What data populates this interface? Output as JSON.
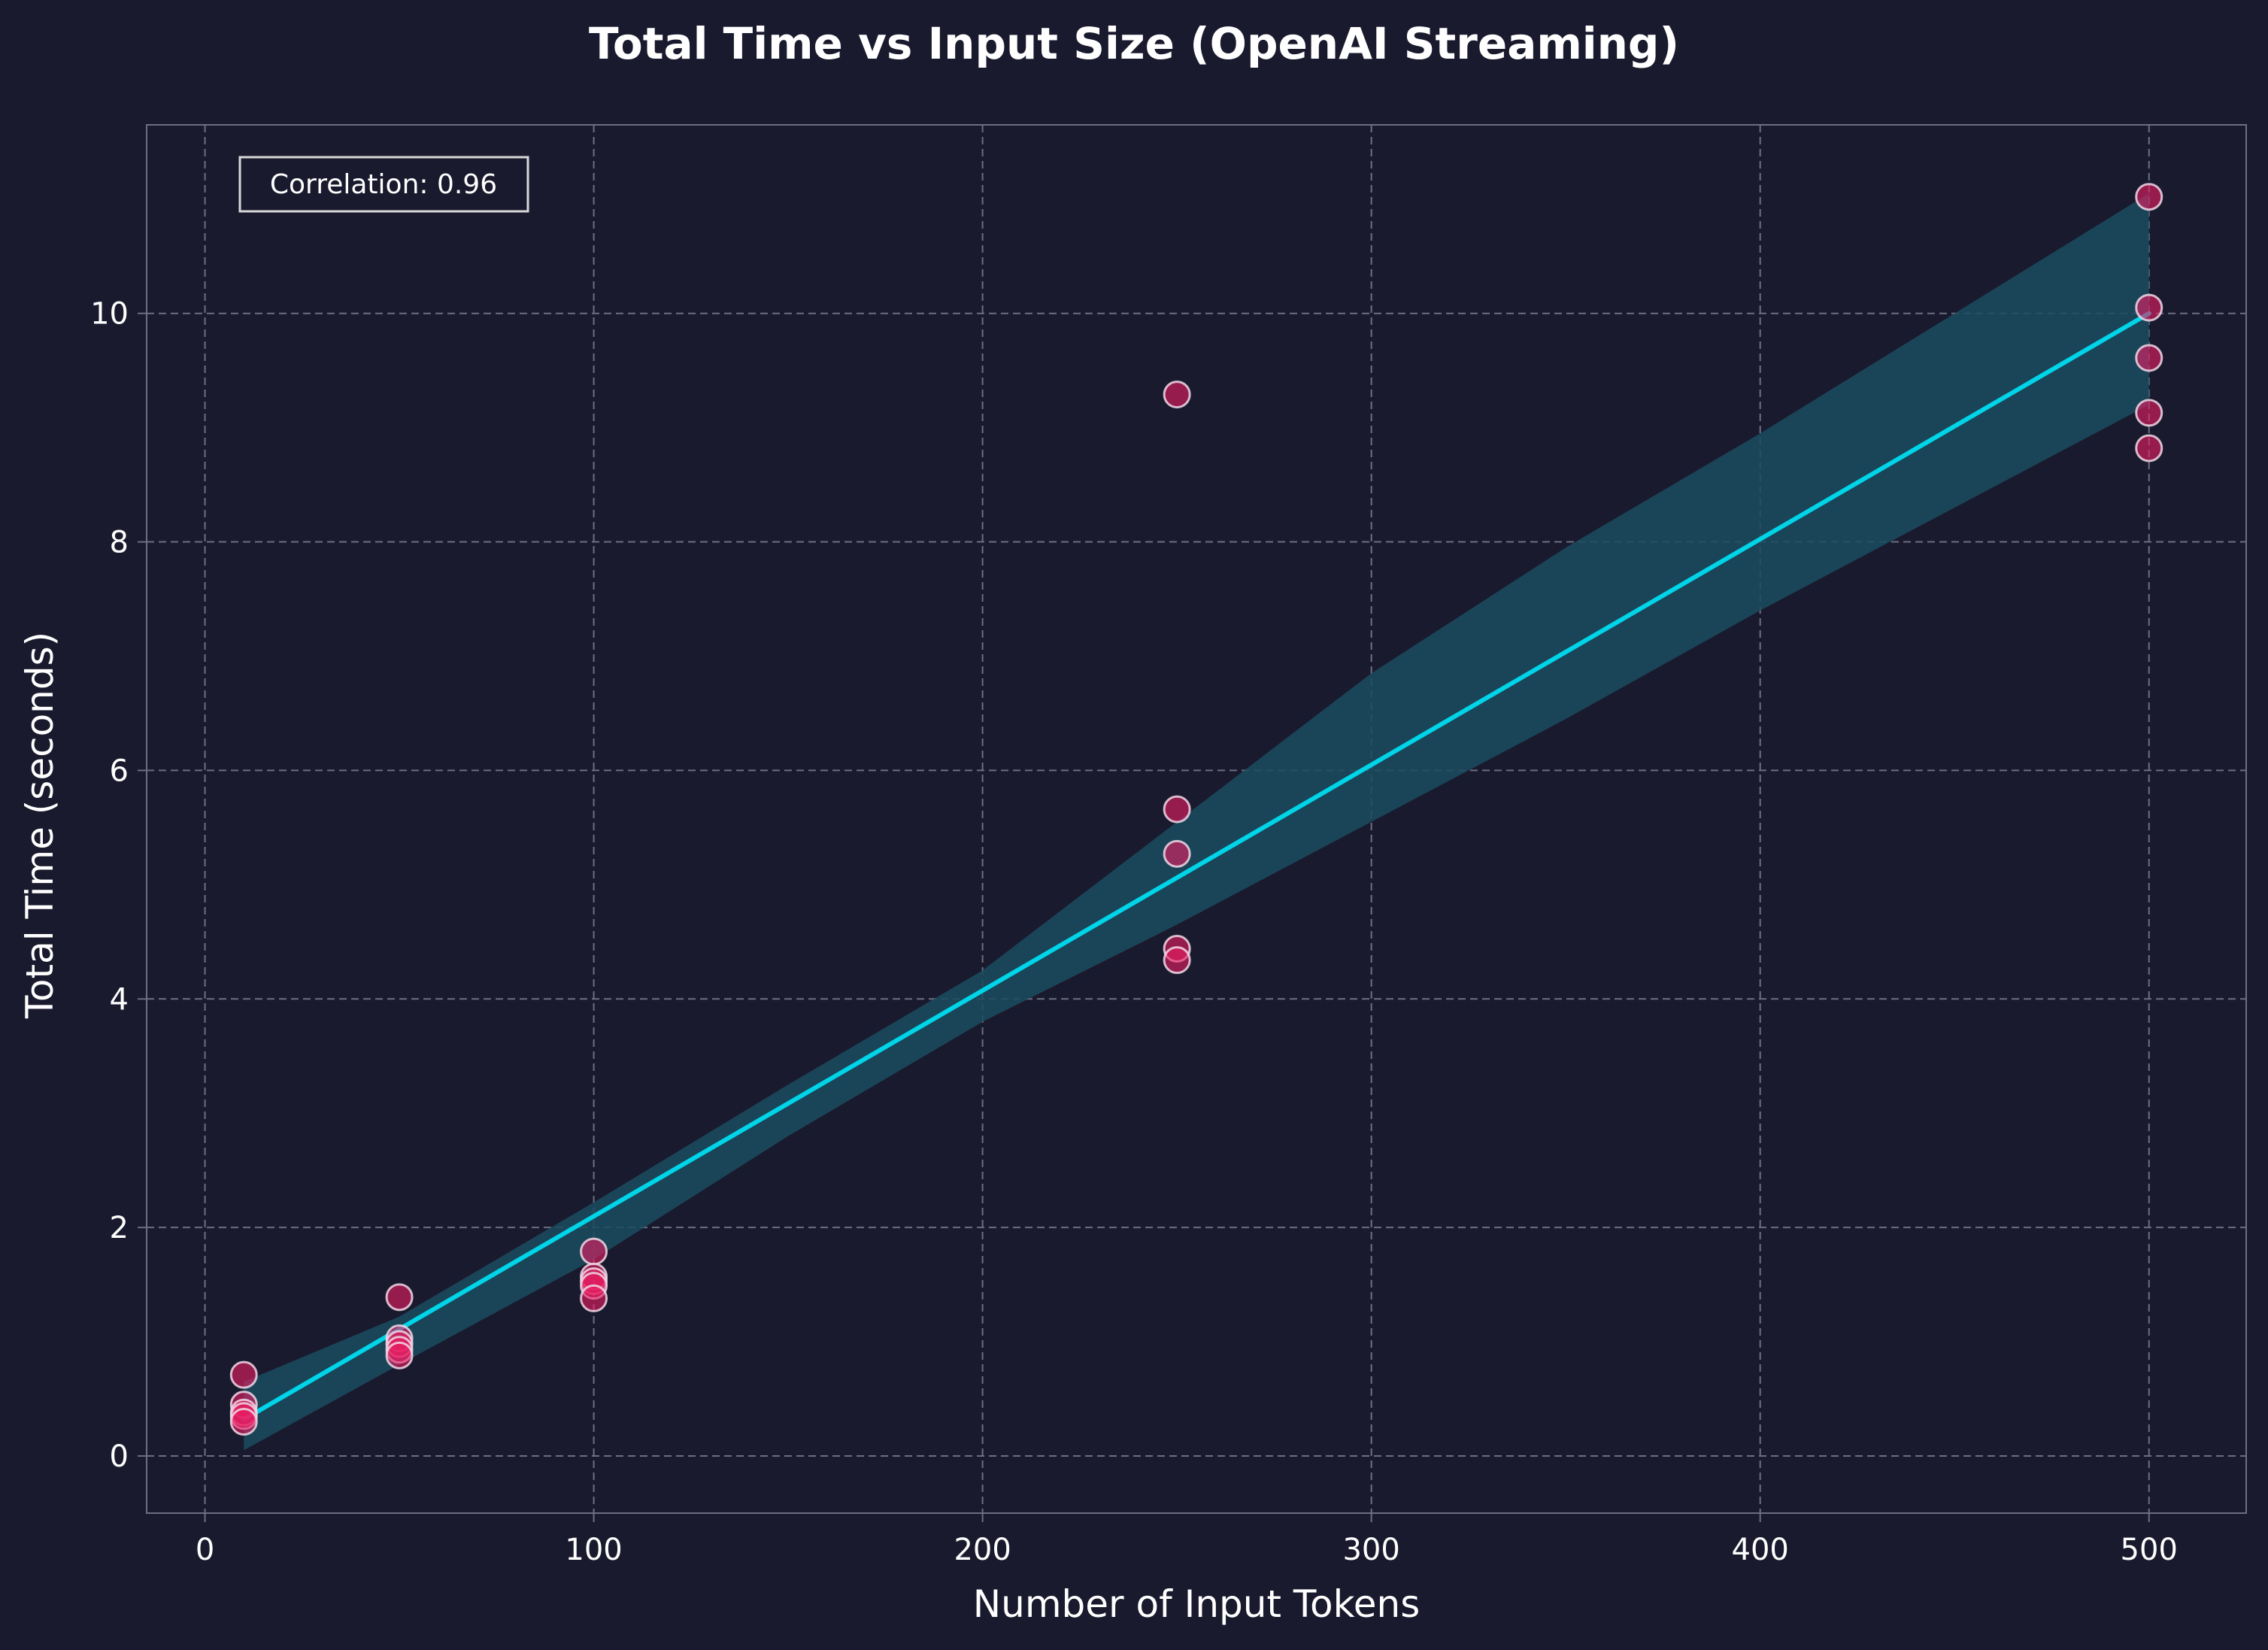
{
  "chart_data": {
    "type": "scatter",
    "title": "Total Time vs Input Size (OpenAI Streaming)",
    "xlabel": "Number of Input Tokens",
    "ylabel": "Total Time (seconds)",
    "xlim": [
      -15,
      525
    ],
    "ylim": [
      -0.5,
      11.65
    ],
    "xticks": [
      0,
      100,
      200,
      300,
      400,
      500
    ],
    "yticks": [
      0,
      2,
      4,
      6,
      8,
      10
    ],
    "grid": true,
    "annotation": "Correlation: 0.96",
    "points": [
      {
        "x": 10,
        "y": 0.71
      },
      {
        "x": 10,
        "y": 0.45
      },
      {
        "x": 10,
        "y": 0.38
      },
      {
        "x": 10,
        "y": 0.35
      },
      {
        "x": 10,
        "y": 0.3
      },
      {
        "x": 50,
        "y": 1.39
      },
      {
        "x": 50,
        "y": 1.03
      },
      {
        "x": 50,
        "y": 0.98
      },
      {
        "x": 50,
        "y": 0.93
      },
      {
        "x": 50,
        "y": 0.88
      },
      {
        "x": 100,
        "y": 1.79
      },
      {
        "x": 100,
        "y": 1.57
      },
      {
        "x": 100,
        "y": 1.53
      },
      {
        "x": 100,
        "y": 1.49
      },
      {
        "x": 100,
        "y": 1.38
      },
      {
        "x": 250,
        "y": 9.29
      },
      {
        "x": 250,
        "y": 5.66
      },
      {
        "x": 250,
        "y": 5.27
      },
      {
        "x": 250,
        "y": 4.44
      },
      {
        "x": 250,
        "y": 4.34
      },
      {
        "x": 500,
        "y": 11.02
      },
      {
        "x": 500,
        "y": 10.05
      },
      {
        "x": 500,
        "y": 9.61
      },
      {
        "x": 500,
        "y": 9.13
      },
      {
        "x": 500,
        "y": 8.82
      }
    ],
    "regression": {
      "x": [
        10,
        500
      ],
      "y": [
        0.32,
        10.0
      ]
    },
    "confidence_band": {
      "x": [
        10,
        50,
        100,
        150,
        200,
        250,
        300,
        350,
        400,
        450,
        500
      ],
      "upper": [
        0.65,
        1.22,
        2.22,
        3.25,
        4.25,
        5.55,
        6.85,
        7.95,
        8.95,
        10.0,
        11.05
      ],
      "lower": [
        0.05,
        0.8,
        1.72,
        2.8,
        3.8,
        4.65,
        5.55,
        6.45,
        7.4,
        8.3,
        9.2
      ]
    },
    "colors": {
      "background": "#1a1a2e",
      "points": "#e91e63",
      "point_edge": "#f0d8e6",
      "regression_line": "#00d4e8",
      "confidence_band": "#1b4c5e",
      "grid": "#6e6e80",
      "spine": "#6e6e80",
      "text": "#ffffff"
    }
  }
}
